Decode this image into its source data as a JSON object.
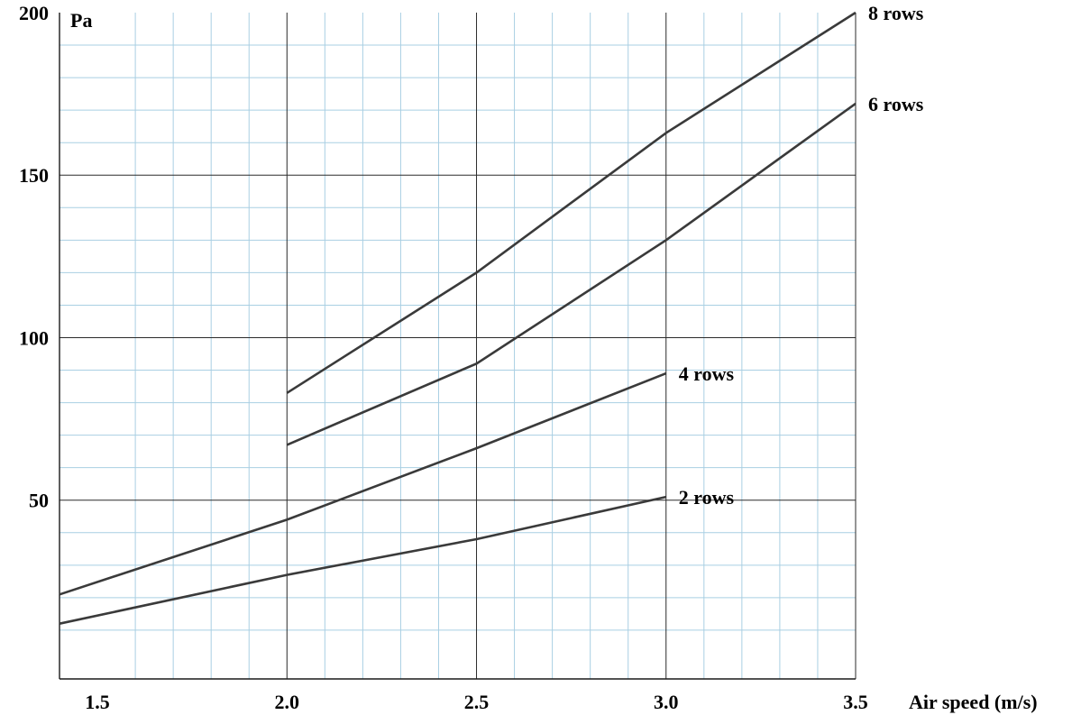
{
  "chart_data": {
    "type": "line",
    "title": "",
    "xlabel": "Air speed (m/s)",
    "ylabel": "Pa",
    "xlim": [
      1.4,
      3.5
    ],
    "ylim": [
      -5,
      200
    ],
    "x_ticks": [
      "1.5",
      "2.0",
      "2.5",
      "3.0",
      "3.5"
    ],
    "y_ticks": [
      "50",
      "100",
      "150",
      "200"
    ],
    "grid": true,
    "series": [
      {
        "name": "8 rows",
        "x": [
          2.0,
          2.5,
          3.0,
          3.5
        ],
        "y": [
          83,
          120,
          163,
          200
        ]
      },
      {
        "name": "6 rows",
        "x": [
          2.0,
          2.5,
          3.0,
          3.5
        ],
        "y": [
          67,
          92,
          130,
          172
        ]
      },
      {
        "name": "4 rows",
        "x": [
          1.4,
          2.0,
          2.5,
          3.0
        ],
        "y": [
          21,
          44,
          66,
          89
        ]
      },
      {
        "name": "2 rows",
        "x": [
          1.4,
          2.0,
          2.5,
          3.0
        ],
        "y": [
          12,
          27,
          38,
          51
        ]
      }
    ],
    "colors": {
      "line": "#3a3a3a",
      "grid_minor": "#a9cfe3",
      "grid_major": "#2b2b2b"
    }
  }
}
